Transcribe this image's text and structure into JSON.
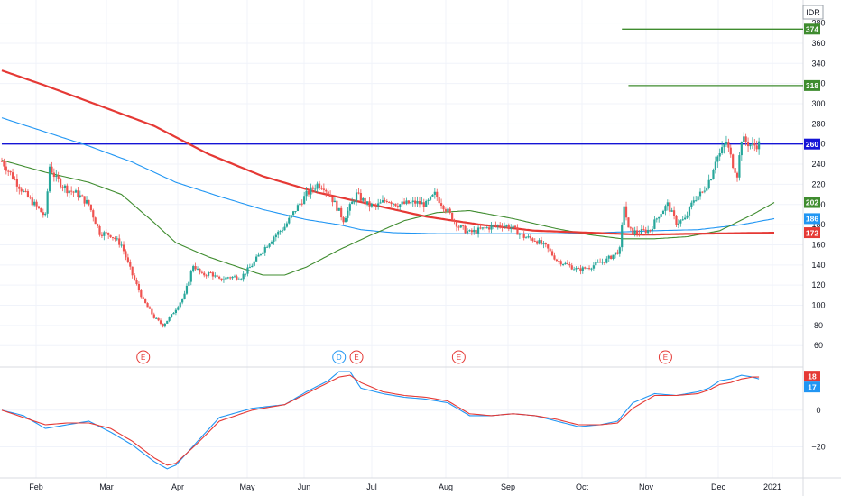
{
  "header": {
    "currency": "IDR"
  },
  "chart_data": {
    "type": "candlestick",
    "price_axis": {
      "ticks": [
        60,
        80,
        100,
        120,
        140,
        160,
        180,
        200,
        220,
        240,
        260,
        280,
        300,
        320,
        340,
        360,
        380
      ],
      "range": [
        45,
        385
      ]
    },
    "oscillator_axis": {
      "ticks": [
        0,
        -20
      ],
      "range": [
        -36,
        22
      ]
    },
    "time_axis": {
      "labels": [
        "Feb",
        "Mar",
        "Apr",
        "May",
        "Jun",
        "Jul",
        "Aug",
        "Sep",
        "Oct",
        "Nov",
        "Dec",
        "2021"
      ]
    },
    "badges": [
      {
        "label": "374",
        "value": 374,
        "color": "#3f8c2f"
      },
      {
        "label": "318",
        "value": 318,
        "color": "#3f8c2f"
      },
      {
        "label": "260",
        "value": 260,
        "color": "#1515d6"
      },
      {
        "label": "202",
        "value": 202,
        "color": "#3f8c2f"
      },
      {
        "label": "186",
        "value": 186,
        "color": "#2196f3"
      },
      {
        "label": "172",
        "value": 172,
        "color": "#e53935"
      }
    ],
    "oscillator_badges": [
      {
        "label": "18",
        "value": 18,
        "color": "#e53935"
      },
      {
        "label": "17",
        "value": 17,
        "color": "#2196f3"
      }
    ],
    "horizontal_levels": [
      {
        "value": 374,
        "from_day": 285,
        "color": "#3f8c2f"
      },
      {
        "value": 318,
        "from_day": 288,
        "color": "#3f8c2f"
      },
      {
        "value": 260,
        "from_day": 0,
        "color": "#1515d6"
      }
    ],
    "events": [
      {
        "label": "E",
        "day": 65,
        "color": "#e53935"
      },
      {
        "label": "D",
        "day": 155,
        "color": "#2196f3"
      },
      {
        "label": "E",
        "day": 163,
        "color": "#e53935"
      },
      {
        "label": "E",
        "day": 210,
        "color": "#e53935"
      },
      {
        "label": "E",
        "day": 305,
        "color": "#e53935"
      }
    ],
    "ma_long": {
      "color": "#e53935",
      "points": [
        [
          0,
          333
        ],
        [
          20,
          318
        ],
        [
          45,
          298
        ],
        [
          70,
          278
        ],
        [
          95,
          250
        ],
        [
          120,
          228
        ],
        [
          145,
          212
        ],
        [
          170,
          200
        ],
        [
          195,
          188
        ],
        [
          220,
          180
        ],
        [
          245,
          174
        ],
        [
          270,
          172
        ],
        [
          295,
          170
        ],
        [
          320,
          171
        ],
        [
          355,
          172
        ]
      ]
    },
    "ma_medium": {
      "color": "#2196f3",
      "points": [
        [
          0,
          286
        ],
        [
          20,
          272
        ],
        [
          40,
          258
        ],
        [
          60,
          242
        ],
        [
          80,
          222
        ],
        [
          100,
          208
        ],
        [
          120,
          195
        ],
        [
          140,
          185
        ],
        [
          155,
          180
        ],
        [
          165,
          175
        ],
        [
          180,
          172
        ],
        [
          200,
          171
        ],
        [
          230,
          171
        ],
        [
          255,
          171
        ],
        [
          275,
          172
        ],
        [
          300,
          174
        ],
        [
          320,
          175
        ],
        [
          340,
          180
        ],
        [
          355,
          186
        ]
      ]
    },
    "ma_short": {
      "color": "#3f8c2f",
      "points": [
        [
          0,
          244
        ],
        [
          20,
          232
        ],
        [
          40,
          222
        ],
        [
          55,
          210
        ],
        [
          70,
          182
        ],
        [
          80,
          162
        ],
        [
          95,
          148
        ],
        [
          110,
          137
        ],
        [
          120,
          130
        ],
        [
          130,
          130
        ],
        [
          140,
          138
        ],
        [
          155,
          155
        ],
        [
          170,
          170
        ],
        [
          185,
          184
        ],
        [
          200,
          192
        ],
        [
          215,
          194
        ],
        [
          235,
          186
        ],
        [
          255,
          176
        ],
        [
          270,
          170
        ],
        [
          285,
          166
        ],
        [
          300,
          166
        ],
        [
          315,
          168
        ],
        [
          330,
          174
        ],
        [
          345,
          190
        ],
        [
          355,
          202
        ]
      ]
    },
    "ohlc_anchors": [
      [
        0,
        243
      ],
      [
        10,
        212
      ],
      [
        15,
        200
      ],
      [
        20,
        188
      ],
      [
        22,
        238
      ],
      [
        25,
        225
      ],
      [
        30,
        215
      ],
      [
        35,
        210
      ],
      [
        40,
        200
      ],
      [
        45,
        172
      ],
      [
        50,
        170
      ],
      [
        55,
        160
      ],
      [
        60,
        130
      ],
      [
        65,
        105
      ],
      [
        70,
        88
      ],
      [
        74,
        80
      ],
      [
        78,
        90
      ],
      [
        84,
        110
      ],
      [
        88,
        140
      ],
      [
        92,
        130
      ],
      [
        96,
        132
      ],
      [
        100,
        125
      ],
      [
        104,
        128
      ],
      [
        110,
        128
      ],
      [
        115,
        140
      ],
      [
        120,
        155
      ],
      [
        125,
        168
      ],
      [
        130,
        178
      ],
      [
        135,
        195
      ],
      [
        140,
        210
      ],
      [
        145,
        220
      ],
      [
        148,
        218
      ],
      [
        152,
        205
      ],
      [
        157,
        185
      ],
      [
        163,
        210
      ],
      [
        168,
        200
      ],
      [
        172,
        198
      ],
      [
        177,
        205
      ],
      [
        182,
        200
      ],
      [
        190,
        202
      ],
      [
        195,
        200
      ],
      [
        199,
        210
      ],
      [
        205,
        193
      ],
      [
        210,
        178
      ],
      [
        215,
        172
      ],
      [
        220,
        175
      ],
      [
        225,
        178
      ],
      [
        230,
        180
      ],
      [
        235,
        176
      ],
      [
        240,
        168
      ],
      [
        245,
        165
      ],
      [
        250,
        158
      ],
      [
        255,
        145
      ],
      [
        260,
        140
      ],
      [
        265,
        135
      ],
      [
        270,
        138
      ],
      [
        278,
        145
      ],
      [
        284,
        155
      ],
      [
        286,
        200
      ],
      [
        288,
        175
      ],
      [
        292,
        172
      ],
      [
        298,
        175
      ],
      [
        302,
        190
      ],
      [
        306,
        200
      ],
      [
        310,
        182
      ],
      [
        314,
        185
      ],
      [
        318,
        205
      ],
      [
        322,
        212
      ],
      [
        326,
        228
      ],
      [
        328,
        245
      ],
      [
        330,
        250
      ],
      [
        333,
        262
      ],
      [
        336,
        240
      ],
      [
        338,
        230
      ],
      [
        340,
        265
      ],
      [
        342,
        262
      ],
      [
        345,
        258
      ],
      [
        348,
        260
      ]
    ],
    "oscillator": {
      "fast": {
        "color": "#2196f3",
        "value": 17,
        "points": [
          [
            0,
            0
          ],
          [
            10,
            -3
          ],
          [
            20,
            -10
          ],
          [
            30,
            -8
          ],
          [
            40,
            -6
          ],
          [
            50,
            -12
          ],
          [
            60,
            -19
          ],
          [
            70,
            -28
          ],
          [
            76,
            -32
          ],
          [
            80,
            -30
          ],
          [
            90,
            -17
          ],
          [
            100,
            -4
          ],
          [
            115,
            1
          ],
          [
            130,
            3
          ],
          [
            140,
            10
          ],
          [
            150,
            16
          ],
          [
            155,
            21
          ],
          [
            160,
            21
          ],
          [
            165,
            12
          ],
          [
            175,
            9
          ],
          [
            185,
            7
          ],
          [
            195,
            6
          ],
          [
            205,
            4
          ],
          [
            215,
            -3
          ],
          [
            225,
            -3
          ],
          [
            235,
            -2
          ],
          [
            245,
            -3
          ],
          [
            255,
            -6
          ],
          [
            265,
            -9
          ],
          [
            275,
            -8
          ],
          [
            283,
            -6
          ],
          [
            290,
            4
          ],
          [
            300,
            9
          ],
          [
            310,
            8
          ],
          [
            320,
            10
          ],
          [
            325,
            12
          ],
          [
            330,
            16
          ],
          [
            335,
            17
          ],
          [
            340,
            19
          ],
          [
            345,
            18
          ],
          [
            348,
            17
          ]
        ]
      },
      "slow": {
        "color": "#e53935",
        "value": 18,
        "points": [
          [
            0,
            0
          ],
          [
            10,
            -4
          ],
          [
            20,
            -8
          ],
          [
            30,
            -7
          ],
          [
            40,
            -7
          ],
          [
            50,
            -10
          ],
          [
            60,
            -17
          ],
          [
            70,
            -26
          ],
          [
            76,
            -30
          ],
          [
            80,
            -29
          ],
          [
            90,
            -18
          ],
          [
            100,
            -6
          ],
          [
            115,
            0
          ],
          [
            130,
            3
          ],
          [
            140,
            9
          ],
          [
            150,
            15
          ],
          [
            155,
            18
          ],
          [
            160,
            19
          ],
          [
            165,
            15
          ],
          [
            175,
            10
          ],
          [
            185,
            8
          ],
          [
            195,
            7
          ],
          [
            205,
            5
          ],
          [
            215,
            -2
          ],
          [
            225,
            -3
          ],
          [
            235,
            -2
          ],
          [
            245,
            -3
          ],
          [
            255,
            -5
          ],
          [
            265,
            -8
          ],
          [
            275,
            -8
          ],
          [
            283,
            -7
          ],
          [
            290,
            1
          ],
          [
            300,
            8
          ],
          [
            310,
            8
          ],
          [
            320,
            9
          ],
          [
            325,
            11
          ],
          [
            330,
            14
          ],
          [
            335,
            15
          ],
          [
            340,
            17
          ],
          [
            345,
            18
          ],
          [
            348,
            18
          ]
        ]
      }
    }
  }
}
